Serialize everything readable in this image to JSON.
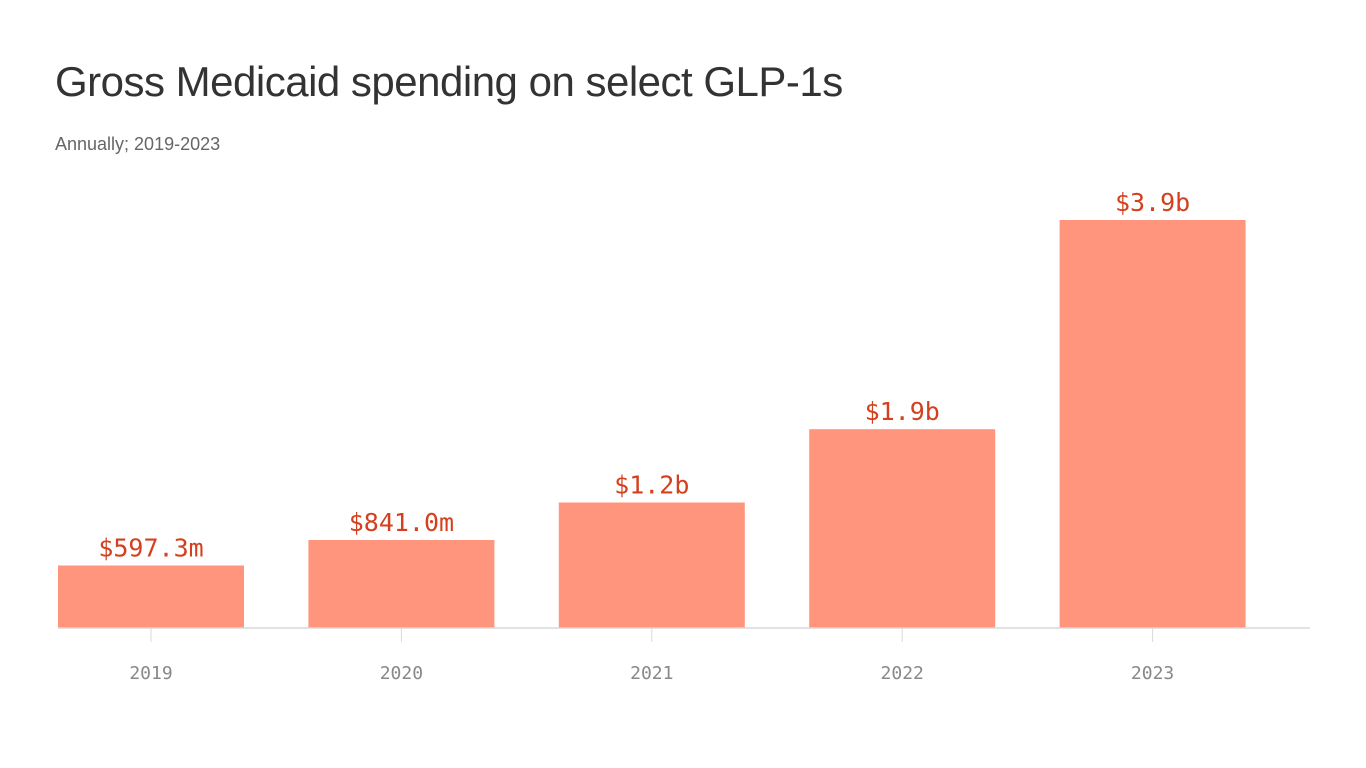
{
  "colors": {
    "bar": "#ff957d",
    "value_label": "#d4401e",
    "axis": "#d9d9d9",
    "tick_label": "#888888",
    "title": "#333333",
    "subtitle": "#666666"
  },
  "chart_data": {
    "type": "bar",
    "title": "Gross Medicaid spending on select GLP-1s",
    "subtitle": "Annually; 2019-2023",
    "xlabel": "",
    "ylabel": "",
    "categories": [
      "2019",
      "2020",
      "2021",
      "2022",
      "2023"
    ],
    "values": [
      597.3,
      841.0,
      1200,
      1900,
      3900
    ],
    "value_unit": "millions of dollars",
    "value_labels": [
      "$597.3m",
      "$841.0m",
      "$1.2b",
      "$1.9b",
      "$3.9b"
    ],
    "ylim": [
      0,
      3900
    ],
    "grid": false,
    "legend": "none"
  }
}
